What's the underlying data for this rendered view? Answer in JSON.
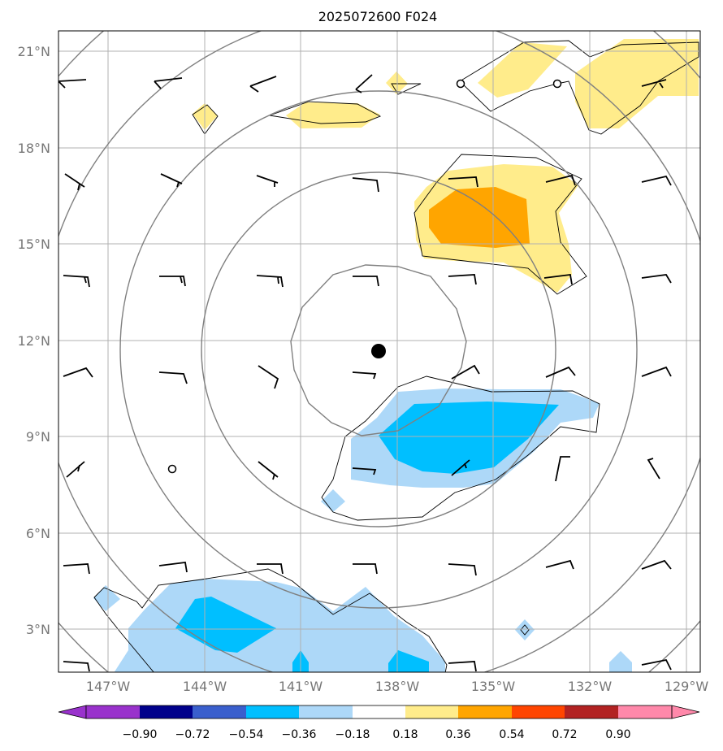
{
  "title": "2025072600 F024",
  "map": {
    "lat_labels": [
      "21°N",
      "18°N",
      "15°N",
      "12°N",
      "9°N",
      "6°N",
      "3°N"
    ],
    "lon_labels": [
      "147°W",
      "144°W",
      "141°W",
      "138°W",
      "135°W",
      "132°W",
      "129°W"
    ],
    "center_marker": {
      "lon": -138.5,
      "lat": 11.7
    },
    "colors": {
      "neg_strong": "#00bfff",
      "neg_weak": "#add8f8",
      "pos_weak": "#ffec8b",
      "pos_strong": "#ffa500",
      "ring": "#808080",
      "grid": "#b0b0b0"
    }
  },
  "colorbar": {
    "ticks": [
      "−0.90",
      "−0.72",
      "−0.54",
      "−0.36",
      "−0.18",
      "0.18",
      "0.36",
      "0.54",
      "0.72",
      "0.90"
    ],
    "colors": [
      "#9932cc",
      "#00008b",
      "#3a5fcd",
      "#00bfff",
      "#add8f8",
      "#ffffff",
      "#ffec8b",
      "#ffa500",
      "#ff4500",
      "#b22222",
      "#ff88aa"
    ]
  }
}
